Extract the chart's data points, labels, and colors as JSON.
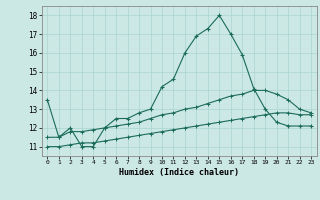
{
  "xlabel": "Humidex (Indice chaleur)",
  "ylabel": "",
  "background_color": "#cce8e4",
  "grid_color": "#aad4d0",
  "line_color": "#1a6b5a",
  "xlim": [
    -0.5,
    23.5
  ],
  "ylim": [
    10.5,
    18.5
  ],
  "x_ticks": [
    0,
    1,
    2,
    3,
    4,
    5,
    6,
    7,
    8,
    9,
    10,
    11,
    12,
    13,
    14,
    15,
    16,
    17,
    18,
    19,
    20,
    21,
    22,
    23
  ],
  "y_ticks": [
    11,
    12,
    13,
    14,
    15,
    16,
    17,
    18
  ],
  "line1_x": [
    0,
    1,
    2,
    3,
    4,
    5,
    6,
    7,
    8,
    9,
    10,
    11,
    12,
    13,
    14,
    15,
    16,
    17,
    18,
    19,
    20,
    21,
    22,
    23
  ],
  "line1_y": [
    13.5,
    11.5,
    12.0,
    11.0,
    11.0,
    12.0,
    12.5,
    12.5,
    12.8,
    13.0,
    14.2,
    14.6,
    16.0,
    16.9,
    17.3,
    18.0,
    17.0,
    15.9,
    14.1,
    13.0,
    12.3,
    12.1,
    12.1,
    12.1
  ],
  "line2_x": [
    0,
    1,
    2,
    3,
    4,
    5,
    6,
    7,
    8,
    9,
    10,
    11,
    12,
    13,
    14,
    15,
    16,
    17,
    18,
    19,
    20,
    21,
    22,
    23
  ],
  "line2_y": [
    11.5,
    11.5,
    11.8,
    11.8,
    11.9,
    12.0,
    12.1,
    12.2,
    12.3,
    12.5,
    12.7,
    12.8,
    13.0,
    13.1,
    13.3,
    13.5,
    13.7,
    13.8,
    14.0,
    14.0,
    13.8,
    13.5,
    13.0,
    12.8
  ],
  "line3_x": [
    0,
    1,
    2,
    3,
    4,
    5,
    6,
    7,
    8,
    9,
    10,
    11,
    12,
    13,
    14,
    15,
    16,
    17,
    18,
    19,
    20,
    21,
    22,
    23
  ],
  "line3_y": [
    11.0,
    11.0,
    11.1,
    11.2,
    11.2,
    11.3,
    11.4,
    11.5,
    11.6,
    11.7,
    11.8,
    11.9,
    12.0,
    12.1,
    12.2,
    12.3,
    12.4,
    12.5,
    12.6,
    12.7,
    12.8,
    12.8,
    12.7,
    12.7
  ]
}
